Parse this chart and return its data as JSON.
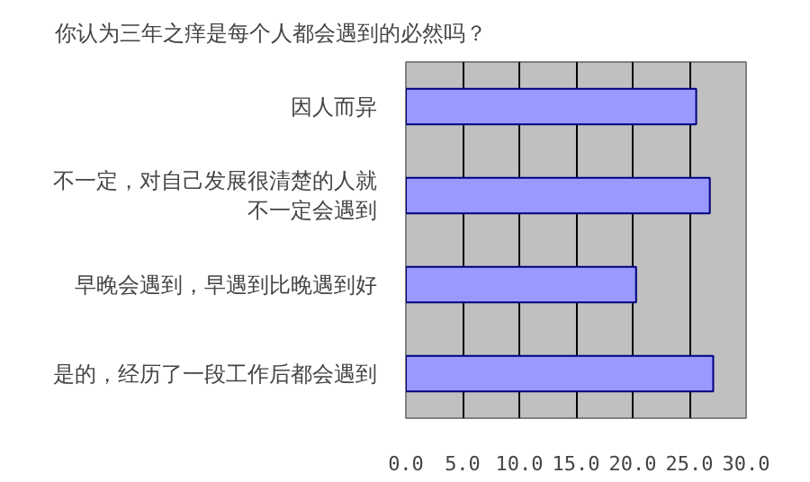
{
  "chart_data": {
    "type": "bar",
    "orientation": "horizontal",
    "title": "你认为三年之痒是每个人都会遇到的必然吗？",
    "categories": [
      "因人而异",
      "不一定，对自己发展很清楚的人就不一定会遇到",
      "早晚会遇到，早遇到比晚遇到好",
      "是的，经历了一段工作后都会遇到"
    ],
    "values": [
      25.6,
      26.8,
      20.3,
      27.1
    ],
    "color": "#9999ff",
    "xlim": [
      0,
      30
    ],
    "xticks": [
      {
        "value": 0,
        "label": "0.0"
      },
      {
        "value": 5,
        "label": "5.0"
      },
      {
        "value": 10,
        "label": "10.0"
      },
      {
        "value": 15,
        "label": "15.0"
      },
      {
        "value": 20,
        "label": "20.0"
      },
      {
        "value": 25,
        "label": "25.0"
      },
      {
        "value": 30,
        "label": "30.0"
      }
    ],
    "grid": "x"
  }
}
